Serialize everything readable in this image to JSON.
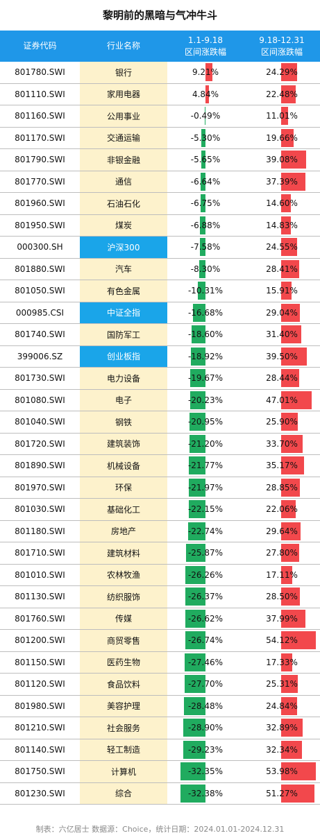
{
  "title": "黎明前的黑暗与气冲牛斗",
  "header": {
    "code": "证券代码",
    "industry": "行业名称",
    "p1_line1": "1.1-9.18",
    "p1_line2": "区间涨跌幅",
    "p2_line1": "9.18-12.31",
    "p2_line2": "区间涨跌幅"
  },
  "colors": {
    "header_bg": "#1f97e8",
    "industry_bg": "#fdf2cc",
    "index_bg": "#1aa5e9",
    "neg_bar": "#20ab5f",
    "pos_bar": "#f2484c"
  },
  "rows": [
    {
      "code": "801780.SWI",
      "name": "银行",
      "v1": "9.21%",
      "v2": "24.29%",
      "n1": 9.21,
      "n2": 24.29,
      "index": false
    },
    {
      "code": "801110.SWI",
      "name": "家用电器",
      "v1": "4.84%",
      "v2": "22.48%",
      "n1": 4.84,
      "n2": 22.48,
      "index": false
    },
    {
      "code": "801160.SWI",
      "name": "公用事业",
      "v1": "-0.49%",
      "v2": "11.01%",
      "n1": -0.49,
      "n2": 11.01,
      "index": false
    },
    {
      "code": "801170.SWI",
      "name": "交通运输",
      "v1": "-5.30%",
      "v2": "19.66%",
      "n1": -5.3,
      "n2": 19.66,
      "index": false
    },
    {
      "code": "801790.SWI",
      "name": "非银金融",
      "v1": "-5.65%",
      "v2": "39.08%",
      "n1": -5.65,
      "n2": 39.08,
      "index": false
    },
    {
      "code": "801770.SWI",
      "name": "通信",
      "v1": "-6.64%",
      "v2": "37.39%",
      "n1": -6.64,
      "n2": 37.39,
      "index": false
    },
    {
      "code": "801960.SWI",
      "name": "石油石化",
      "v1": "-6.75%",
      "v2": "14.60%",
      "n1": -6.75,
      "n2": 14.6,
      "index": false
    },
    {
      "code": "801950.SWI",
      "name": "煤炭",
      "v1": "-6.88%",
      "v2": "14.83%",
      "n1": -6.88,
      "n2": 14.83,
      "index": false
    },
    {
      "code": "000300.SH",
      "name": "沪深300",
      "v1": "-7.58%",
      "v2": "24.55%",
      "n1": -7.58,
      "n2": 24.55,
      "index": true
    },
    {
      "code": "801880.SWI",
      "name": "汽车",
      "v1": "-8.30%",
      "v2": "28.41%",
      "n1": -8.3,
      "n2": 28.41,
      "index": false
    },
    {
      "code": "801050.SWI",
      "name": "有色金属",
      "v1": "-10.31%",
      "v2": "15.91%",
      "n1": -10.31,
      "n2": 15.91,
      "index": false
    },
    {
      "code": "000985.CSI",
      "name": "中证全指",
      "v1": "-16.68%",
      "v2": "29.04%",
      "n1": -16.68,
      "n2": 29.04,
      "index": true
    },
    {
      "code": "801740.SWI",
      "name": "国防军工",
      "v1": "-18.60%",
      "v2": "31.40%",
      "n1": -18.6,
      "n2": 31.4,
      "index": false
    },
    {
      "code": "399006.SZ",
      "name": "创业板指",
      "v1": "-18.92%",
      "v2": "39.50%",
      "n1": -18.92,
      "n2": 39.5,
      "index": true
    },
    {
      "code": "801730.SWI",
      "name": "电力设备",
      "v1": "-19.67%",
      "v2": "28.44%",
      "n1": -19.67,
      "n2": 28.44,
      "index": false
    },
    {
      "code": "801080.SWI",
      "name": "电子",
      "v1": "-20.23%",
      "v2": "47.01%",
      "n1": -20.23,
      "n2": 47.01,
      "index": false
    },
    {
      "code": "801040.SWI",
      "name": "钢铁",
      "v1": "-20.95%",
      "v2": "25.90%",
      "n1": -20.95,
      "n2": 25.9,
      "index": false
    },
    {
      "code": "801720.SWI",
      "name": "建筑装饰",
      "v1": "-21.20%",
      "v2": "33.70%",
      "n1": -21.2,
      "n2": 33.7,
      "index": false
    },
    {
      "code": "801890.SWI",
      "name": "机械设备",
      "v1": "-21.77%",
      "v2": "35.17%",
      "n1": -21.77,
      "n2": 35.17,
      "index": false
    },
    {
      "code": "801970.SWI",
      "name": "环保",
      "v1": "-21.97%",
      "v2": "28.85%",
      "n1": -21.97,
      "n2": 28.85,
      "index": false
    },
    {
      "code": "801030.SWI",
      "name": "基础化工",
      "v1": "-22.15%",
      "v2": "22.06%",
      "n1": -22.15,
      "n2": 22.06,
      "index": false
    },
    {
      "code": "801180.SWI",
      "name": "房地产",
      "v1": "-22.74%",
      "v2": "29.64%",
      "n1": -22.74,
      "n2": 29.64,
      "index": false
    },
    {
      "code": "801710.SWI",
      "name": "建筑材料",
      "v1": "-25.87%",
      "v2": "27.80%",
      "n1": -25.87,
      "n2": 27.8,
      "index": false
    },
    {
      "code": "801010.SWI",
      "name": "农林牧渔",
      "v1": "-26.26%",
      "v2": "17.11%",
      "n1": -26.26,
      "n2": 17.11,
      "index": false
    },
    {
      "code": "801130.SWI",
      "name": "纺织服饰",
      "v1": "-26.37%",
      "v2": "28.50%",
      "n1": -26.37,
      "n2": 28.5,
      "index": false
    },
    {
      "code": "801760.SWI",
      "name": "传媒",
      "v1": "-26.62%",
      "v2": "37.99%",
      "n1": -26.62,
      "n2": 37.99,
      "index": false
    },
    {
      "code": "801200.SWI",
      "name": "商贸零售",
      "v1": "-26.74%",
      "v2": "54.12%",
      "n1": -26.74,
      "n2": 54.12,
      "index": false
    },
    {
      "code": "801150.SWI",
      "name": "医药生物",
      "v1": "-27.46%",
      "v2": "17.33%",
      "n1": -27.46,
      "n2": 17.33,
      "index": false
    },
    {
      "code": "801120.SWI",
      "name": "食品饮料",
      "v1": "-27.70%",
      "v2": "25.31%",
      "n1": -27.7,
      "n2": 25.31,
      "index": false
    },
    {
      "code": "801980.SWI",
      "name": "美容护理",
      "v1": "-28.48%",
      "v2": "24.84%",
      "n1": -28.48,
      "n2": 24.84,
      "index": false
    },
    {
      "code": "801210.SWI",
      "name": "社会服务",
      "v1": "-28.90%",
      "v2": "32.89%",
      "n1": -28.9,
      "n2": 32.89,
      "index": false
    },
    {
      "code": "801140.SWI",
      "name": "轻工制造",
      "v1": "-29.23%",
      "v2": "32.34%",
      "n1": -29.23,
      "n2": 32.34,
      "index": false
    },
    {
      "code": "801750.SWI",
      "name": "计算机",
      "v1": "-32.35%",
      "v2": "53.98%",
      "n1": -32.35,
      "n2": 53.98,
      "index": false
    },
    {
      "code": "801230.SWI",
      "name": "综合",
      "v1": "-32.38%",
      "v2": "51.27%",
      "n1": -32.38,
      "n2": 51.27,
      "index": false
    }
  ],
  "footer": "制表：六亿居士  数据源：Choice，统计日期：2024.01.01-2024.12.31"
}
